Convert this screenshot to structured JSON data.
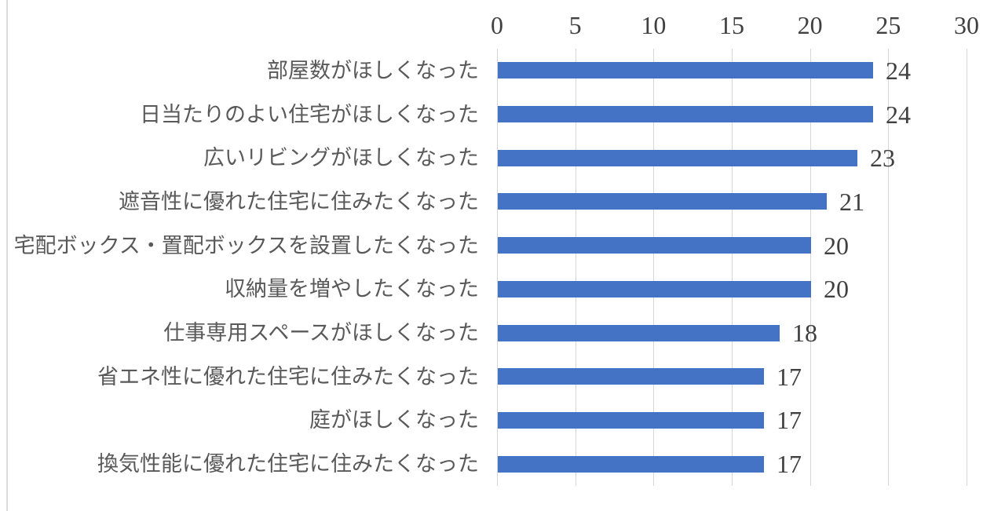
{
  "chart_data": {
    "type": "bar",
    "orientation": "horizontal",
    "title": "",
    "xlabel": "",
    "ylabel": "",
    "axis_position": "top",
    "grid": true,
    "legend": false,
    "xlim": [
      0,
      30
    ],
    "xticks": [
      0,
      5,
      10,
      15,
      20,
      25,
      30
    ],
    "categories": [
      "部屋数がほしくなった",
      "日当たりのよい住宅がほしくなった",
      "広いリビングがほしくなった",
      "遮音性に優れた住宅に住みたくなった",
      "宅配ボックス・置配ボックスを設置したくなった",
      "収納量を増やしたくなった",
      "仕事専用スペースがほしくなった",
      "省エネ性に優れた住宅に住みたくなった",
      "庭がほしくなった",
      "換気性能に優れた住宅に住みたくなった"
    ],
    "values": [
      24,
      24,
      23,
      21,
      20,
      20,
      18,
      17,
      17,
      17
    ],
    "data_labels": [
      "24",
      "24",
      "23",
      "21",
      "20",
      "20",
      "18",
      "17",
      "17",
      "17"
    ],
    "colors": {
      "bar": "#4472C4",
      "gridline": "#D6D6D6",
      "axis_line": "#D6D6D6",
      "tick_label": "#404040",
      "data_label": "#404040",
      "category_label": "#595959",
      "background": "#FFFFFF",
      "image_left_border": "#DCDCDC"
    }
  }
}
